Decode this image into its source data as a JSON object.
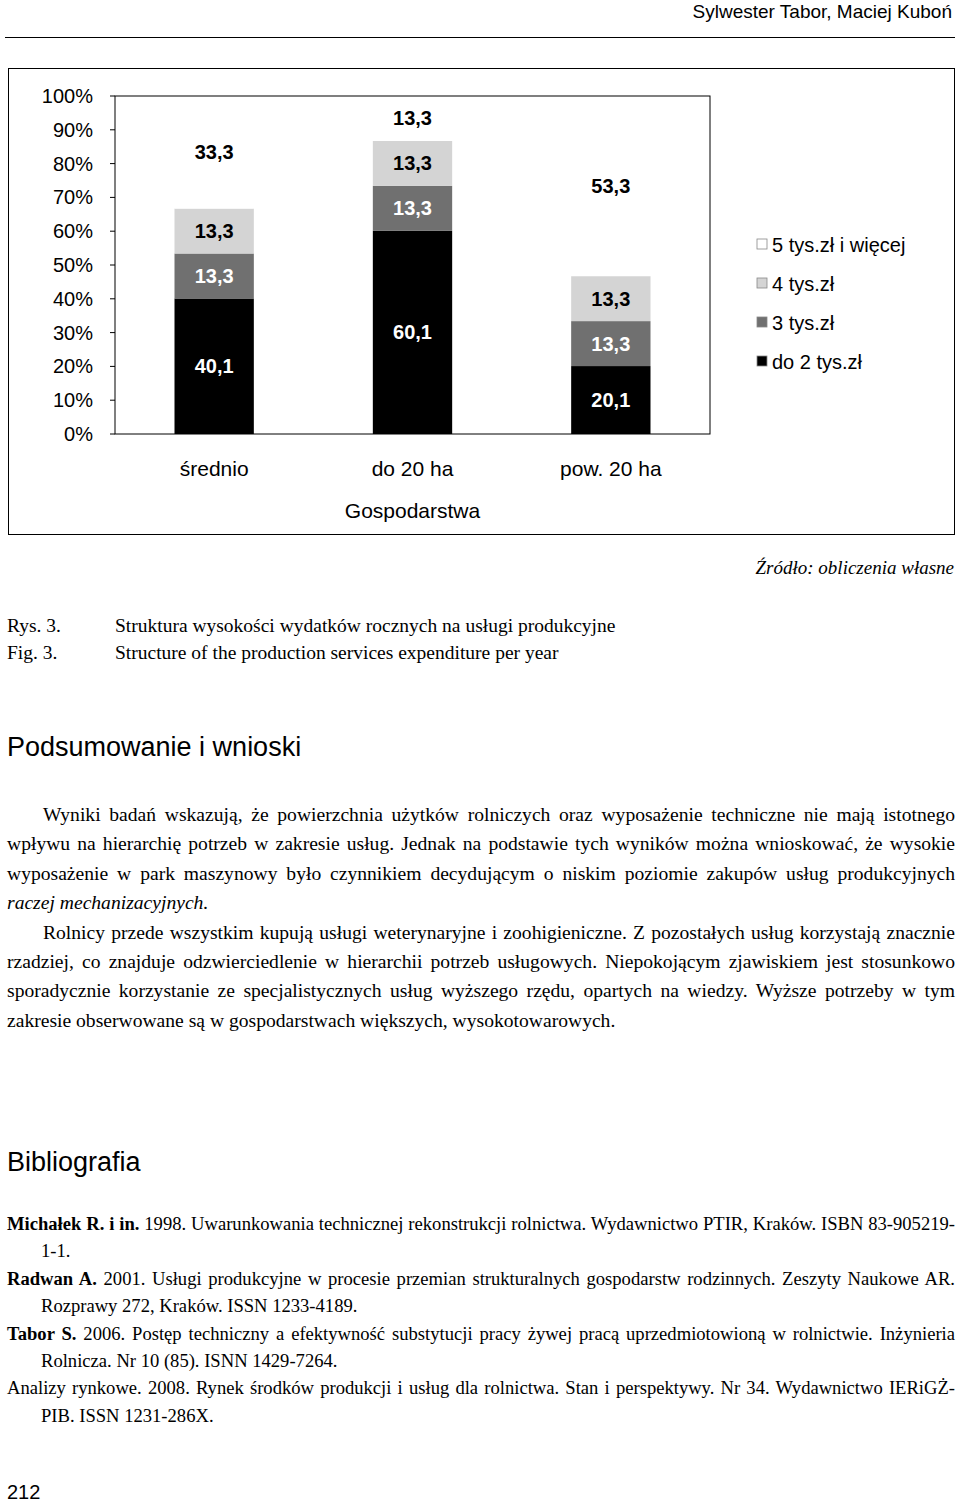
{
  "header": {
    "authors": "Sylwester Tabor, Maciej Kuboń"
  },
  "chart_data": {
    "type": "bar",
    "stacked": true,
    "data_labels": true,
    "grid": false,
    "legend": "right",
    "x_label": "Gospodarstwa",
    "categories": [
      "średnio",
      "do 20 ha",
      "pow. 20 ha"
    ],
    "ylim": [
      0,
      100
    ],
    "yticks": [
      {
        "value": 0,
        "label": "0%"
      },
      {
        "value": 10,
        "label": "10%"
      },
      {
        "value": 20,
        "label": "20%"
      },
      {
        "value": 30,
        "label": "30%"
      },
      {
        "value": 40,
        "label": "40%"
      },
      {
        "value": 50,
        "label": "50%"
      },
      {
        "value": 60,
        "label": "60%"
      },
      {
        "value": 70,
        "label": "70%"
      },
      {
        "value": 80,
        "label": "80%"
      },
      {
        "value": 90,
        "label": "90%"
      },
      {
        "value": 100,
        "label": "100%"
      }
    ],
    "series": [
      {
        "name": "do 2 tys.zł",
        "color": "#000000",
        "values": [
          40.1,
          60.1,
          20.1
        ],
        "value_labels": [
          "40,1",
          "60,1",
          "20,1"
        ]
      },
      {
        "name": "3 tys.zł",
        "color": "#707070",
        "values": [
          13.3,
          13.3,
          13.3
        ],
        "value_labels": [
          "13,3",
          "13,3",
          "13,3"
        ]
      },
      {
        "name": "4 tys.zł",
        "color": "#d4d4d4",
        "values": [
          13.3,
          13.3,
          13.3
        ],
        "value_labels": [
          "13,3",
          "13,3",
          "13,3"
        ]
      },
      {
        "name": "5 tys.zł i więcej",
        "color": "#ffffff",
        "values": [
          33.3,
          13.3,
          53.3
        ],
        "value_labels": [
          "33,3",
          "13,3",
          "53,3"
        ]
      }
    ]
  },
  "source": "Źródło: obliczenia własne",
  "caption": {
    "pl_label": "Rys. 3.",
    "pl": "Struktura wysokości wydatków rocznych na usługi produkcyjne",
    "en_label": "Fig. 3.",
    "en": "Structure of the production services expenditure per year"
  },
  "summary": {
    "heading": "Podsumowanie i wnioski",
    "paragraphs": [
      {
        "runs": [
          {
            "text": "Wyniki badań wskazują, że powierzchnia użytków rolniczych oraz wyposażenie techniczne nie mają istotnego wpływu na hierarchię potrzeb w zakresie usług. Jednak na podstawie tych wyników można wnioskować, że wysokie wyposażenie w park maszynowy było czynnikiem decydującym o niskim poziomie zakupów usług produkcyjnych ",
            "style": "normal"
          },
          {
            "text": "raczej mechanizacyjnych.",
            "style": "italic"
          }
        ]
      },
      {
        "runs": [
          {
            "text": "Rolnicy przede wszystkim kupują usługi weterynaryjne i zoohigieniczne. Z pozostałych usług korzystają znacznie rzadziej, co znajduje odzwierciedlenie w hierarchii potrzeb usługowych. Niepokojącym zjawiskiem jest stosunkowo sporadycznie korzystanie ze specjalistycznych usług wyższego rzędu, opartych na wiedzy. Wyższe potrzeby w tym zakresie obserwowane są w gospodarstwach większych, wysokotowarowych.",
            "style": "normal"
          }
        ]
      }
    ]
  },
  "bibliography": {
    "heading": "Bibliografia",
    "entries": [
      {
        "lead": "Michałek R. i in.",
        "lead_style": "bold",
        "text": "1998. Uwarunkowania technicznej rekonstrukcji rolnictwa. Wydawnictwo PTIR, Kraków. ISBN 83-905219-1-1."
      },
      {
        "lead": "Radwan A.",
        "lead_style": "bold",
        "text": "2001. Usługi produkcyjne w procesie przemian strukturalnych gospodarstw rodzinnych. Zeszyty Naukowe AR. Rozprawy 272, Kraków. ISSN 1233-4189."
      },
      {
        "lead": "Tabor S.",
        "lead_style": "bold",
        "text": "2006. Postęp techniczny a efektywność substytucji pracy żywej pracą uprzedmiotowioną w rolnictwie. Inżynieria Rolnicza. Nr 10 (85). ISNN 1429-7264."
      },
      {
        "lead": "Analizy rynkowe.",
        "lead_style": "normal",
        "text": "2008. Rynek środków produkcji i usług dla rolnictwa. Stan i perspektywy. Nr 34. Wydawnictwo IERiGŻ-PIB. ISSN 1231-286X."
      }
    ]
  },
  "page_number": "212"
}
